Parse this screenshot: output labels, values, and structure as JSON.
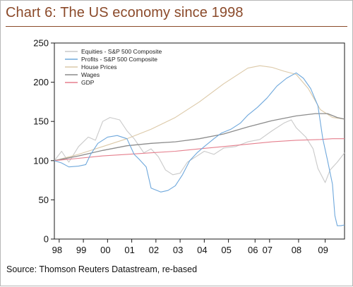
{
  "title": "Chart 6: The US economy since 1998",
  "source": "Source: Thomson Reuters Datastream, re-based",
  "colors": {
    "title": "#8b4a2a",
    "equities": "#c9c9c9",
    "profits": "#6fa8dc",
    "house": "#dcc9a8",
    "wages": "#8c8c8c",
    "gdp": "#e57f8d"
  },
  "chart_data": {
    "type": "line",
    "ylim": [
      0,
      250
    ],
    "yticks": [
      0,
      50,
      100,
      150,
      200,
      250
    ],
    "xlim": [
      1998.0,
      2010.0
    ],
    "xticks": [
      {
        "label": "98",
        "x": 1998.2
      },
      {
        "label": "99",
        "x": 1999.2
      },
      {
        "label": "00",
        "x": 2000.2
      },
      {
        "label": "01",
        "x": 2001.2
      },
      {
        "label": "02",
        "x": 2002.2
      },
      {
        "label": "03",
        "x": 2003.2
      },
      {
        "label": "04",
        "x": 2004.2
      },
      {
        "label": "05",
        "x": 2005.2
      },
      {
        "label": "06",
        "x": 2006.3
      },
      {
        "label": "07",
        "x": 2006.9
      },
      {
        "label": "08",
        "x": 2008.1
      },
      {
        "label": "09",
        "x": 2009.2
      }
    ],
    "legend_position": "top-left",
    "series": [
      {
        "name": "Equities - S&P 500 Composite",
        "color_key": "equities",
        "points": [
          [
            1998.0,
            100
          ],
          [
            1998.3,
            112
          ],
          [
            1998.6,
            98
          ],
          [
            1999.0,
            118
          ],
          [
            1999.4,
            130
          ],
          [
            1999.7,
            126
          ],
          [
            2000.0,
            150
          ],
          [
            2000.3,
            155
          ],
          [
            2000.7,
            152
          ],
          [
            2001.0,
            138
          ],
          [
            2001.3,
            128
          ],
          [
            2001.7,
            110
          ],
          [
            2002.0,
            115
          ],
          [
            2002.3,
            105
          ],
          [
            2002.6,
            88
          ],
          [
            2002.9,
            82
          ],
          [
            2003.2,
            84
          ],
          [
            2003.5,
            98
          ],
          [
            2003.8,
            104
          ],
          [
            2004.2,
            112
          ],
          [
            2004.6,
            108
          ],
          [
            2005.0,
            116
          ],
          [
            2005.5,
            118
          ],
          [
            2006.0,
            124
          ],
          [
            2006.5,
            127
          ],
          [
            2007.0,
            138
          ],
          [
            2007.5,
            148
          ],
          [
            2007.8,
            152
          ],
          [
            2008.0,
            142
          ],
          [
            2008.4,
            130
          ],
          [
            2008.7,
            115
          ],
          [
            2008.9,
            90
          ],
          [
            2009.2,
            72
          ],
          [
            2009.4,
            88
          ],
          [
            2009.7,
            98
          ],
          [
            2010.0,
            110
          ]
        ]
      },
      {
        "name": "Profits - S&P 500 Composite",
        "color_key": "profits",
        "points": [
          [
            1998.0,
            100
          ],
          [
            1998.3,
            97
          ],
          [
            1998.6,
            92
          ],
          [
            1999.0,
            93
          ],
          [
            1999.3,
            95
          ],
          [
            1999.5,
            108
          ],
          [
            1999.8,
            122
          ],
          [
            2000.2,
            130
          ],
          [
            2000.6,
            132
          ],
          [
            2001.0,
            128
          ],
          [
            2001.3,
            108
          ],
          [
            2001.5,
            102
          ],
          [
            2001.8,
            92
          ],
          [
            2002.0,
            65
          ],
          [
            2002.4,
            60
          ],
          [
            2002.7,
            62
          ],
          [
            2003.0,
            68
          ],
          [
            2003.3,
            82
          ],
          [
            2003.6,
            100
          ],
          [
            2003.9,
            110
          ],
          [
            2004.2,
            118
          ],
          [
            2004.6,
            128
          ],
          [
            2004.9,
            135
          ],
          [
            2005.3,
            140
          ],
          [
            2005.7,
            148
          ],
          [
            2006.0,
            158
          ],
          [
            2006.4,
            168
          ],
          [
            2006.8,
            180
          ],
          [
            2007.2,
            195
          ],
          [
            2007.6,
            205
          ],
          [
            2008.0,
            212
          ],
          [
            2008.3,
            205
          ],
          [
            2008.6,
            192
          ],
          [
            2008.9,
            170
          ],
          [
            2009.1,
            128
          ],
          [
            2009.3,
            100
          ],
          [
            2009.5,
            70
          ],
          [
            2009.6,
            30
          ],
          [
            2009.7,
            17
          ],
          [
            2009.85,
            17
          ],
          [
            2010.0,
            18
          ]
        ]
      },
      {
        "name": "House Prices",
        "color_key": "house",
        "points": [
          [
            1998.0,
            100
          ],
          [
            1999.0,
            108
          ],
          [
            2000.0,
            118
          ],
          [
            2001.0,
            128
          ],
          [
            2002.0,
            140
          ],
          [
            2003.0,
            155
          ],
          [
            2004.0,
            175
          ],
          [
            2005.0,
            198
          ],
          [
            2006.0,
            218
          ],
          [
            2006.5,
            221
          ],
          [
            2007.0,
            219
          ],
          [
            2007.5,
            214
          ],
          [
            2008.0,
            210
          ],
          [
            2008.5,
            192
          ],
          [
            2009.0,
            165
          ],
          [
            2009.5,
            155
          ],
          [
            2010.0,
            153
          ]
        ]
      },
      {
        "name": "Wages",
        "color_key": "wages",
        "points": [
          [
            1998.0,
            100
          ],
          [
            1999.0,
            106
          ],
          [
            2000.0,
            113
          ],
          [
            2001.0,
            119
          ],
          [
            2002.0,
            122
          ],
          [
            2003.0,
            124
          ],
          [
            2004.0,
            128
          ],
          [
            2005.0,
            134
          ],
          [
            2006.0,
            143
          ],
          [
            2007.0,
            151
          ],
          [
            2008.0,
            157
          ],
          [
            2008.8,
            160
          ],
          [
            2009.3,
            160
          ],
          [
            2009.7,
            155
          ],
          [
            2010.0,
            153
          ]
        ]
      },
      {
        "name": "GDP",
        "color_key": "gdp",
        "points": [
          [
            1998.0,
            100
          ],
          [
            1999.0,
            103
          ],
          [
            2000.0,
            106
          ],
          [
            2001.0,
            108
          ],
          [
            2002.0,
            110
          ],
          [
            2003.0,
            112
          ],
          [
            2004.0,
            115
          ],
          [
            2005.0,
            118
          ],
          [
            2006.0,
            121
          ],
          [
            2007.0,
            124
          ],
          [
            2008.0,
            126
          ],
          [
            2009.0,
            127
          ],
          [
            2009.5,
            128
          ],
          [
            2010.0,
            128
          ]
        ]
      }
    ]
  }
}
